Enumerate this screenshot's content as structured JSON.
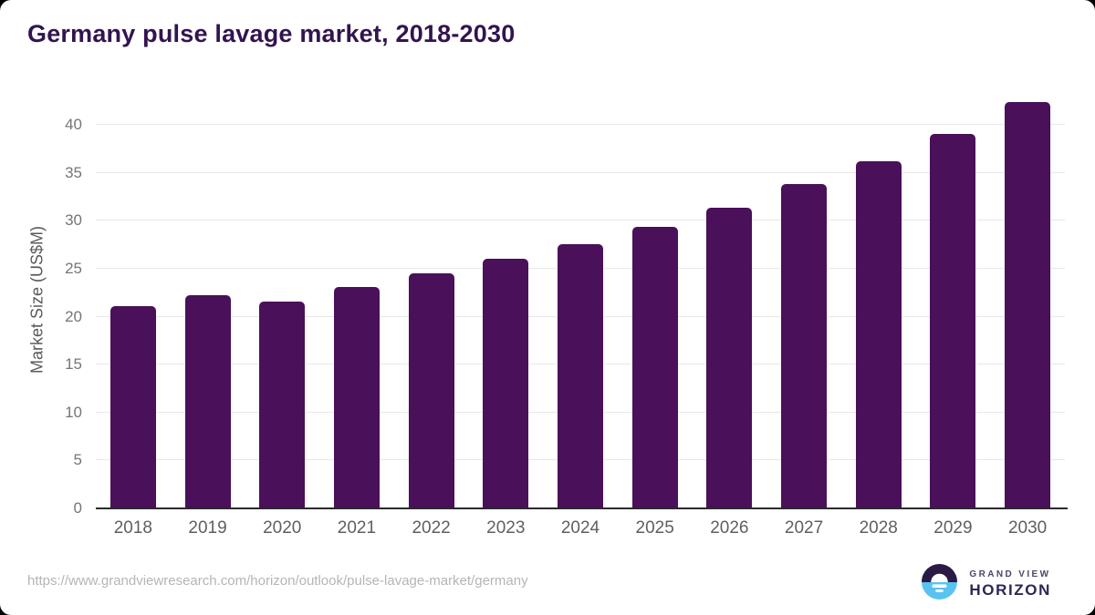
{
  "page": {
    "title": "Germany pulse lavage market, 2018-2030"
  },
  "chart_data": {
    "type": "bar",
    "title": "Germany pulse lavage market, 2018-2030",
    "categories": [
      "2018",
      "2019",
      "2020",
      "2021",
      "2022",
      "2023",
      "2024",
      "2025",
      "2026",
      "2027",
      "2028",
      "2029",
      "2030"
    ],
    "values": [
      21.1,
      22.2,
      21.6,
      23.1,
      24.5,
      26.0,
      27.6,
      29.4,
      31.4,
      33.8,
      36.2,
      39.1,
      42.4
    ],
    "xlabel": "",
    "ylabel": "Market Size (US$M)",
    "yticks": [
      0,
      5,
      10,
      15,
      20,
      25,
      30,
      35,
      40
    ],
    "ylim": [
      0,
      43.5
    ],
    "grid": true,
    "legend": false,
    "bar_color": "#4A1059"
  },
  "footer": {
    "source_url": "https://www.grandviewresearch.com/horizon/outlook/pulse-lavage-market/germany",
    "logo_line1": "GRAND VIEW",
    "logo_line2": "HORIZON"
  },
  "colors": {
    "title": "#321450",
    "bar": "#4A1059",
    "gridline": "#E8E8E8",
    "axis_line": "#2B2B2B",
    "tick_label": "#757575",
    "x_label": "#5F5F5F",
    "axis_title": "#595959",
    "url_text": "#B5B5B5",
    "logo_dark_purple": "#2B1A46",
    "logo_light_blue": "#58C3F0",
    "logo_text_gray": "#4E4566",
    "logo_text_dark": "#2F2556"
  }
}
